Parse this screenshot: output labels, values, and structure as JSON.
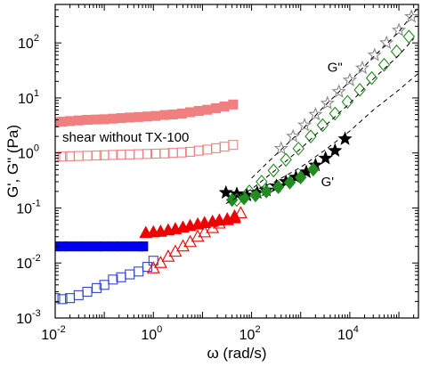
{
  "chart_data": {
    "type": "scatter",
    "title": "",
    "xlabel": "ω (rad/s)",
    "ylabel": "G', G\" (Pa)",
    "xscale": "log",
    "yscale": "log",
    "xlim": [
      0.01,
      250000
    ],
    "ylim": [
      0.001,
      500
    ],
    "grid": false,
    "x_ticks": [
      {
        "base": "10",
        "exp": "-2"
      },
      {
        "base": "10",
        "exp": "0"
      },
      {
        "base": "10",
        "exp": "2"
      },
      {
        "base": "10",
        "exp": "4"
      }
    ],
    "y_ticks": [
      {
        "base": "10",
        "exp": "-3"
      },
      {
        "base": "10",
        "exp": "-2"
      },
      {
        "base": "10",
        "exp": "-1"
      },
      {
        "base": "10",
        "exp": "0"
      },
      {
        "base": "10",
        "exp": "1"
      },
      {
        "base": "10",
        "exp": "2"
      }
    ],
    "annotations": [
      {
        "text": "shear without TX-100",
        "x": 0.014,
        "y": 1.6
      },
      {
        "text": "G\"",
        "x": 3500,
        "y": 30
      },
      {
        "text": "G'",
        "x": 2600,
        "y": 0.25
      }
    ],
    "series": [
      {
        "marker": "square",
        "filled": true,
        "color": "#f08080",
        "x": [
          0.01,
          0.014,
          0.02,
          0.03,
          0.045,
          0.07,
          0.1,
          0.15,
          0.22,
          0.33,
          0.5,
          0.75,
          1.1,
          1.7,
          2.5,
          3.8,
          5.6,
          8.4,
          12.5,
          18.8,
          28,
          42
        ],
        "y": [
          3.6,
          3.7,
          3.8,
          3.9,
          4.0,
          4.05,
          4.1,
          4.2,
          4.3,
          4.4,
          4.5,
          4.6,
          4.7,
          4.9,
          5.0,
          5.2,
          5.5,
          5.8,
          6.1,
          6.5,
          7.0,
          7.6
        ]
      },
      {
        "marker": "square",
        "filled": false,
        "color": "#f08080",
        "x": [
          0.01,
          0.014,
          0.02,
          0.03,
          0.045,
          0.07,
          0.1,
          0.15,
          0.22,
          0.33,
          0.5,
          0.75,
          1.1,
          1.7,
          2.5,
          3.8,
          5.6,
          8.4,
          12.5,
          18.8,
          28,
          42
        ],
        "y": [
          0.85,
          0.86,
          0.87,
          0.88,
          0.89,
          0.9,
          0.91,
          0.92,
          0.93,
          0.94,
          0.95,
          0.96,
          0.97,
          0.98,
          1.0,
          1.02,
          1.05,
          1.1,
          1.15,
          1.22,
          1.3,
          1.4
        ]
      },
      {
        "marker": "square",
        "filled": true,
        "color": "#0000ee",
        "x": [
          0.01,
          0.014,
          0.02,
          0.03,
          0.045,
          0.07,
          0.1,
          0.15,
          0.22,
          0.33,
          0.5,
          0.62
        ],
        "y": [
          0.02,
          0.02,
          0.02,
          0.02,
          0.02,
          0.02,
          0.02,
          0.02,
          0.02,
          0.02,
          0.02,
          0.02
        ]
      },
      {
        "marker": "square",
        "filled": false,
        "color": "#3344cc",
        "x": [
          0.01,
          0.014,
          0.02,
          0.03,
          0.045,
          0.07,
          0.1,
          0.15,
          0.22,
          0.33,
          0.5,
          0.75,
          1.0
        ],
        "y": [
          0.0023,
          0.0022,
          0.0023,
          0.0026,
          0.003,
          0.0035,
          0.004,
          0.005,
          0.0055,
          0.0062,
          0.007,
          0.0085,
          0.011
        ]
      },
      {
        "marker": "triangle",
        "filled": true,
        "color": "#ee0000",
        "x": [
          0.7,
          1.0,
          1.4,
          2.0,
          2.8,
          4.0,
          5.6,
          8.0,
          11,
          16,
          22,
          32,
          45
        ],
        "y": [
          0.035,
          0.036,
          0.037,
          0.039,
          0.041,
          0.044,
          0.047,
          0.05,
          0.053,
          0.056,
          0.059,
          0.062,
          0.065
        ]
      },
      {
        "marker": "triangle",
        "filled": false,
        "color": "#ee0000",
        "x": [
          1.0,
          1.4,
          2.0,
          2.8,
          4.0,
          5.6,
          8.0,
          11,
          16,
          22,
          32,
          45,
          60
        ],
        "y": [
          0.008,
          0.01,
          0.013,
          0.016,
          0.02,
          0.024,
          0.03,
          0.036,
          0.043,
          0.052,
          0.06,
          0.07,
          0.08
        ]
      },
      {
        "marker": "star",
        "filled": true,
        "color": "#000000",
        "x": [
          30,
          50,
          80,
          130,
          200,
          320,
          500,
          800,
          1300,
          2000,
          3200,
          5000,
          8000
        ],
        "y": [
          0.19,
          0.18,
          0.17,
          0.19,
          0.21,
          0.25,
          0.3,
          0.36,
          0.45,
          0.6,
          0.8,
          1.1,
          1.8
        ]
      },
      {
        "marker": "star",
        "filled": false,
        "color": "#888888",
        "x": [
          400,
          700,
          1200,
          2000,
          3500,
          6000,
          10000,
          18000,
          32000,
          56000,
          100000,
          180000
        ],
        "y": [
          1.2,
          2.0,
          3.2,
          5.0,
          8.0,
          13,
          21,
          35,
          60,
          100,
          170,
          300
        ]
      },
      {
        "marker": "diamond",
        "filled": true,
        "color": "#228b22",
        "x": [
          40,
          70,
          120,
          200,
          350,
          600,
          1000,
          1800
        ],
        "y": [
          0.14,
          0.15,
          0.17,
          0.2,
          0.24,
          0.29,
          0.36,
          0.5
        ]
      },
      {
        "marker": "diamond",
        "filled": false,
        "color": "#228b22",
        "x": [
          50,
          90,
          160,
          280,
          500,
          900,
          1600,
          2800,
          5000,
          9000,
          16000,
          28000,
          50000,
          90000,
          160000
        ],
        "y": [
          0.14,
          0.2,
          0.3,
          0.48,
          0.75,
          1.2,
          2.0,
          3.2,
          5.2,
          8.5,
          14,
          23,
          40,
          70,
          130
        ]
      },
      {
        "marker": "line",
        "dash": true,
        "color": "#000000",
        "x": [
          100,
          300,
          1000,
          3000,
          10000,
          30000,
          100000,
          250000
        ],
        "y": [
          0.2,
          0.3,
          0.55,
          1.1,
          2.5,
          6.0,
          14,
          28
        ]
      },
      {
        "marker": "line",
        "dash": true,
        "color": "#000000",
        "x": [
          30,
          100,
          300,
          1000,
          3000,
          10000,
          30000,
          100000,
          200000
        ],
        "y": [
          0.12,
          0.22,
          0.48,
          1.2,
          3.0,
          8.0,
          22,
          60,
          120
        ]
      },
      {
        "marker": "line",
        "dash": true,
        "color": "#000000",
        "x": [
          100,
          300,
          1000,
          3000,
          10000,
          30000,
          100000,
          250000
        ],
        "y": [
          0.35,
          0.9,
          2.5,
          7.0,
          20,
          55,
          160,
          450
        ]
      }
    ]
  }
}
